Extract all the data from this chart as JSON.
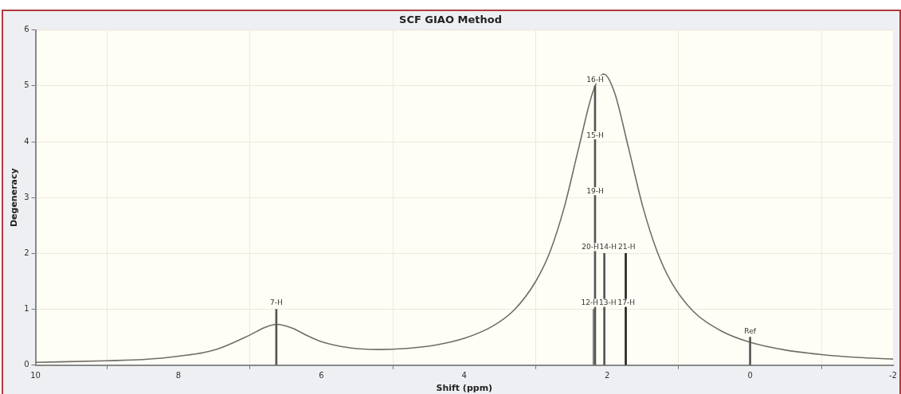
{
  "chart_data": {
    "type": "line",
    "title": "SCF GIAO Method",
    "xlabel": "Shift (ppm)",
    "ylabel": "Degeneracy",
    "xlim": [
      10,
      -2
    ],
    "xticks": [
      10,
      8,
      6,
      4,
      2,
      0,
      -2
    ],
    "ylim": [
      0,
      6
    ],
    "yticks": [
      0,
      1,
      2,
      3,
      4,
      5,
      6
    ],
    "grid": true,
    "legend": false,
    "marker": "none",
    "series": [
      {
        "color": "#6e6e66",
        "x": [
          10,
          9,
          8.5,
          8,
          7.5,
          7,
          6.8,
          6.63,
          6.4,
          6.2,
          6,
          5.6,
          5.2,
          4.8,
          4.4,
          4,
          3.6,
          3.3,
          3,
          2.8,
          2.6,
          2.4,
          2.2,
          2.05,
          1.9,
          1.7,
          1.5,
          1.3,
          1.1,
          0.8,
          0.4,
          0,
          -0.5,
          -1,
          -1.5,
          -2
        ],
        "values": [
          0.05,
          0.08,
          0.1,
          0.16,
          0.27,
          0.54,
          0.67,
          0.73,
          0.66,
          0.53,
          0.42,
          0.31,
          0.28,
          0.3,
          0.36,
          0.48,
          0.7,
          0.99,
          1.5,
          2.03,
          2.83,
          3.88,
          4.89,
          5.21,
          4.89,
          3.88,
          2.83,
          2.03,
          1.48,
          0.97,
          0.61,
          0.41,
          0.27,
          0.19,
          0.14,
          0.11
        ]
      },
      {
        "type": "bar",
        "colors": [
          "#555555",
          "#8a8a8a",
          "#555555",
          "#555555",
          "#222222",
          "#555555"
        ],
        "x": [
          6.63,
          2.19,
          2.17,
          2.04,
          1.74,
          0
        ],
        "values": [
          1,
          1,
          5,
          2,
          2,
          0.5
        ]
      }
    ],
    "annotations": [
      {
        "text": "7-H",
        "x": 6.63,
        "y": 1
      },
      {
        "text": "16-H",
        "x": 2.17,
        "y": 5
      },
      {
        "text": "15-H",
        "x": 2.17,
        "y": 4
      },
      {
        "text": "19-H",
        "x": 2.17,
        "y": 3
      },
      {
        "text": "20-H",
        "x": 2.17,
        "y": 2
      },
      {
        "text": "14-H",
        "x": 2.04,
        "y": 2
      },
      {
        "text": "12-H",
        "x": 2.19,
        "y": 1
      },
      {
        "text": "13-H",
        "x": 2.04,
        "y": 1
      },
      {
        "text": "21-H",
        "x": 1.74,
        "y": 2
      },
      {
        "text": "17-H",
        "x": 1.74,
        "y": 1
      },
      {
        "text": "Ref",
        "x": 0,
        "y": 0.5
      }
    ]
  }
}
